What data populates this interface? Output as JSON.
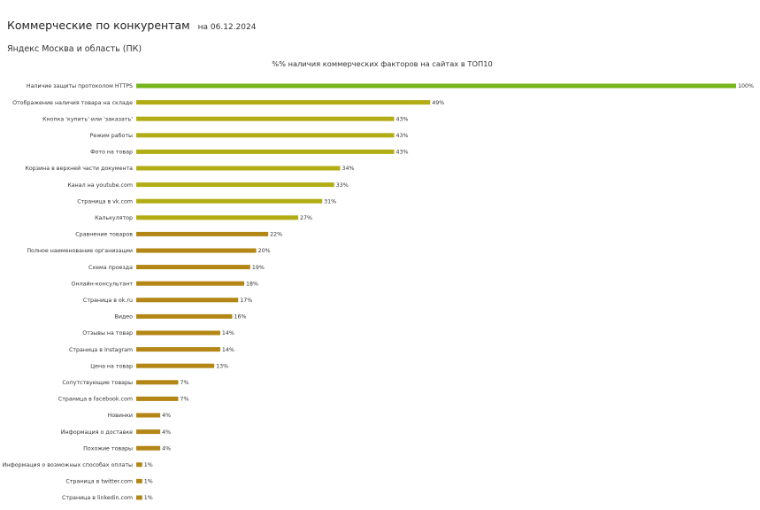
{
  "header": {
    "title": "Коммерческие по конкурентам",
    "date": "на 06.12.2024",
    "region": "Яндекс Москва и область (ПК)"
  },
  "chart_data": {
    "type": "bar",
    "orientation": "horizontal",
    "title": "%% наличия коммерческих факторов на сайтах в ТОП10",
    "categories": [
      "Наличие защиты протоколом HTTPS",
      "Отображение наличия товара на складе",
      "Кнопка 'купить' или 'заказать'",
      "Режим работы",
      "Фото на товар",
      "Корзина в верхней части документа",
      "Канал на youtube.com",
      "Страница в vk.com",
      "Калькулятор",
      "Сравнение товаров",
      "Полное наименование организации",
      "Схема проезда",
      "Онлайн-консультант",
      "Страница в ok.ru",
      "Видео",
      "Отзывы на товар",
      "Страница в Instagram",
      "Цена на товар",
      "Сопутствующие товары",
      "Страница в facebook.com",
      "Новинки",
      "Информация о доставке",
      "Похожие товары",
      "Информация о возможных способах оплаты",
      "Страница в twitter.com",
      "Страница в linkedin.com"
    ],
    "values": [
      100,
      49,
      43,
      43,
      43,
      34,
      33,
      31,
      27,
      22,
      20,
      19,
      18,
      17,
      16,
      14,
      14,
      13,
      7,
      7,
      4,
      4,
      4,
      1,
      1,
      1
    ],
    "value_labels": [
      "100%",
      "49%",
      "43%",
      "43%",
      "43%",
      "34%",
      "33%",
      "31%",
      "27%",
      "22%",
      "20%",
      "19%",
      "18%",
      "17%",
      "16%",
      "14%",
      "14%",
      "13%",
      "7%",
      "7%",
      "4%",
      "4%",
      "4%",
      "1%",
      "1%",
      "1%"
    ],
    "xlim": [
      0,
      100
    ],
    "colors": {
      "high": "#76b51b",
      "mid": "#b3ad15",
      "low": "#b38615"
    },
    "grid": false,
    "legend": "none"
  }
}
